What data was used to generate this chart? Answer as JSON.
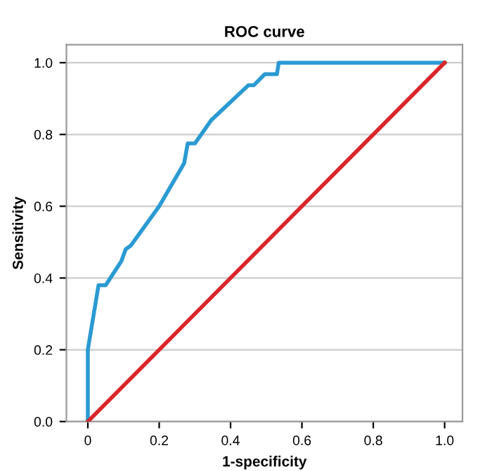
{
  "chart_data": {
    "type": "line",
    "title": "ROC curve",
    "xlabel": "1-specificity",
    "ylabel": "Sensitivity",
    "series": [
      {
        "color": "#2b9ad2",
        "x": [
          0,
          0,
          0.03,
          0.05,
          0.094,
          0.106,
          0.12,
          0.2,
          0.27,
          0.28,
          0.3,
          0.346,
          0.45,
          0.465,
          0.496,
          0.53,
          0.535,
          1
        ],
        "values": [
          0,
          0.2,
          0.38,
          0.38,
          0.447,
          0.48,
          0.49,
          0.6,
          0.72,
          0.775,
          0.775,
          0.84,
          0.937,
          0.937,
          0.968,
          0.968,
          1,
          1
        ]
      },
      {
        "color": "#d9262a",
        "x": [
          0,
          1
        ],
        "values": [
          0,
          1
        ]
      }
    ],
    "xlim": [
      -0.06,
      1.05
    ],
    "ylim": [
      0,
      1.05
    ],
    "xticks": [
      0,
      0.2,
      0.4,
      0.6,
      0.8,
      {
        "value": 1,
        "label": "1.0"
      }
    ],
    "yticks": [
      {
        "value": 0,
        "label": "0.0"
      },
      0.2,
      0.4,
      0.6,
      0.8,
      {
        "value": 1,
        "label": "1.0"
      }
    ],
    "grid": "y",
    "legend": false,
    "marker": "none",
    "line_style": "solid"
  }
}
